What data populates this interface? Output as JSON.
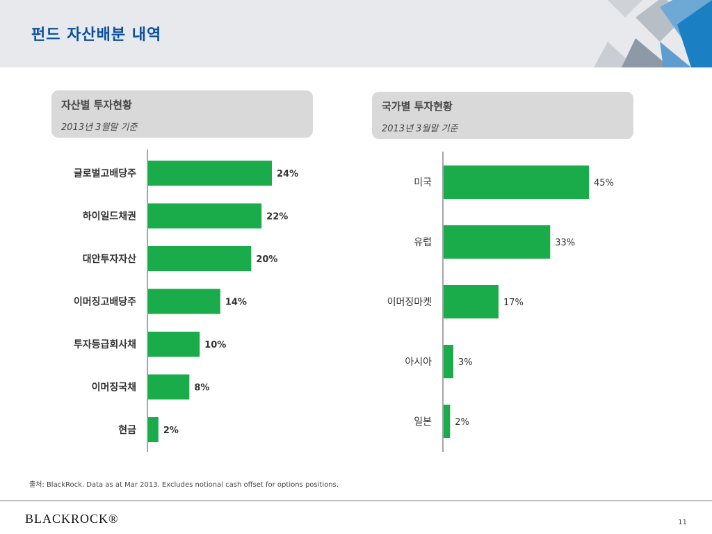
{
  "header": {
    "title": "펀드 자산배분 내역"
  },
  "panels": {
    "asset": {
      "title": "자산별 투자현황",
      "subtitle": "2013년 3월말 기준"
    },
    "country": {
      "title": "국가별 투자현황",
      "subtitle": "2013년 3월말 기준"
    }
  },
  "chart_data": [
    {
      "type": "bar",
      "orientation": "horizontal",
      "categories": [
        "글로벌고배당주",
        "하이일드채권",
        "대안투자자산",
        "이머징고배당주",
        "투자등급회사채",
        "이머징국채",
        "현금"
      ],
      "values": [
        24,
        22,
        20,
        14,
        10,
        8,
        2
      ],
      "value_labels": [
        "24%",
        "22%",
        "20%",
        "14%",
        "10%",
        "8%",
        "2%"
      ],
      "title": "",
      "xlabel": "",
      "ylabel": "",
      "color": "#1aab4b",
      "grid": false
    },
    {
      "type": "bar",
      "orientation": "horizontal",
      "categories": [
        "미국",
        "유럽",
        "이머징마켓",
        "아시아",
        "일본"
      ],
      "values": [
        45,
        33,
        17,
        3,
        2
      ],
      "value_labels": [
        "45%",
        "33%",
        "17%",
        "3%",
        "2%"
      ],
      "title": "",
      "xlabel": "",
      "ylabel": "",
      "color": "#1aab4b",
      "grid": false
    }
  ],
  "footer": {
    "source": "출처: BlackRock. Data as at Mar 2013. Excludes notional cash offset for options positions.",
    "logo": "BLACKROCK®",
    "page_number": "11"
  }
}
